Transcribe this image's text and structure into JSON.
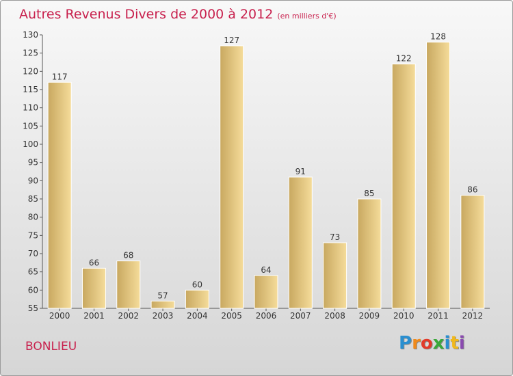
{
  "title": "Autres Revenus Divers de 2000 à 2012",
  "subtitle": "(en milliers d'€)",
  "place": "BONLIEU",
  "logo": {
    "letters": [
      "P",
      "r",
      "o",
      "x",
      "i",
      "t",
      "i"
    ],
    "colors": [
      "#2a8fd0",
      "#f08a1c",
      "#e23a2a",
      "#3aa83a",
      "#2a8fd0",
      "#f0b81c",
      "#8a4ab0"
    ]
  },
  "colors": {
    "title": "#c8204d",
    "bar_light": "#f5dc9a",
    "bar_dark": "#c8a860",
    "bar_edge": "#ffffff"
  },
  "chart_data": {
    "type": "bar",
    "categories": [
      "2000",
      "2001",
      "2002",
      "2003",
      "2004",
      "2005",
      "2006",
      "2007",
      "2008",
      "2009",
      "2010",
      "2011",
      "2012"
    ],
    "values": [
      117,
      66,
      68,
      57,
      60,
      127,
      64,
      91,
      73,
      85,
      122,
      128,
      86
    ],
    "ylim": [
      55,
      130
    ],
    "yticks": [
      55,
      60,
      65,
      70,
      75,
      80,
      85,
      90,
      95,
      100,
      105,
      110,
      115,
      120,
      125,
      130
    ],
    "grid": false
  }
}
